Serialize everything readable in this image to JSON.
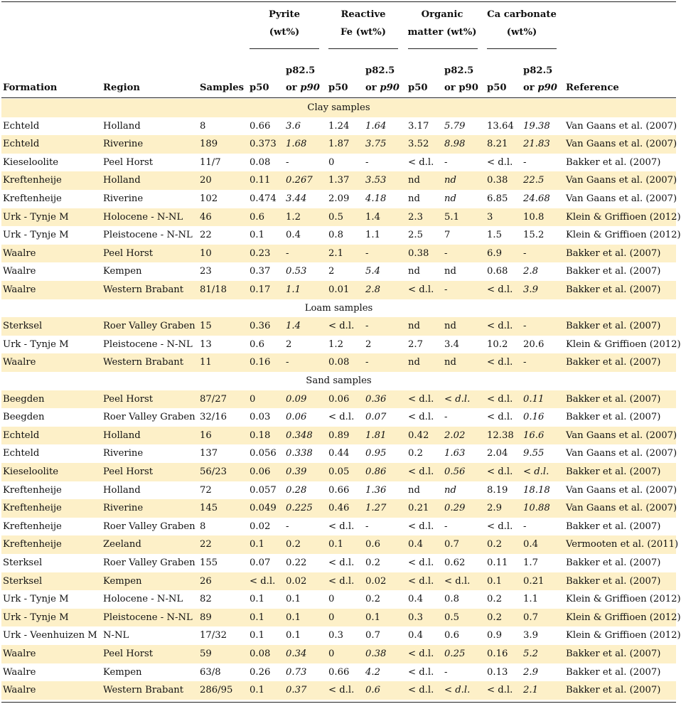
{
  "groups": [
    {
      "line1": "Pyrite",
      "line2": "(wt%)"
    },
    {
      "line1": "Reactive",
      "line2": "Fe (wt%)"
    },
    {
      "line1": "Organic",
      "line2": "matter (wt%)"
    },
    {
      "line1": "Ca carbonate",
      "line2": "(wt%)"
    }
  ],
  "headers": {
    "formation": "Formation",
    "region": "Region",
    "samples": "Samples",
    "pyrite_p50": "p50",
    "pyrite_p82_top": "p82.5",
    "pyrite_p82_bot_a": "or ",
    "pyrite_p82_bot_b": "p90",
    "fe_p50": "p50",
    "fe_p82_top": "p82.5",
    "fe_p82_bot_a": "or ",
    "fe_p82_bot_b": "p90",
    "om_p50": "p50",
    "om_p82_top": "p82.5",
    "om_p82_bot": "or p90",
    "ca_p50": "p50",
    "ca_p82_top": "p82.5",
    "ca_p82_bot_a": "or ",
    "ca_p82_bot_b": "p90",
    "reference": "Reference"
  },
  "sections": [
    {
      "title": "Clay samples",
      "rows": [
        {
          "f": "Echteld",
          "r": "Holland",
          "s": "8",
          "a": "0.66",
          "b": "3.6",
          "bi": true,
          "c": "1.24",
          "d": "1.64",
          "di": true,
          "e": "3.17",
          "g": "5.79",
          "gi": true,
          "h": "13.64",
          "k": "19.38",
          "ki": true,
          "ref": "Van Gaans et al. (2007)"
        },
        {
          "f": "Echteld",
          "r": "Riverine",
          "s": "189",
          "a": "0.373",
          "b": "1.68",
          "bi": true,
          "c": "1.87",
          "d": "3.75",
          "di": true,
          "e": "3.52",
          "g": "8.98",
          "gi": true,
          "h": "8.21",
          "k": "21.83",
          "ki": true,
          "ref": "Van Gaans et al. (2007)"
        },
        {
          "f": "Kieseloolite",
          "r": "Peel Horst",
          "s": "11/7",
          "a": "0.08",
          "b": "-",
          "c": "0",
          "d": "-",
          "e": "< d.l.",
          "g": "-",
          "h": "< d.l.",
          "k": "-",
          "ref": "Bakker et al. (2007)"
        },
        {
          "f": "Kreftenheije",
          "r": "Holland",
          "s": "20",
          "a": "0.11",
          "b": "0.267",
          "bi": true,
          "c": "1.37",
          "d": "3.53",
          "di": true,
          "e": "nd",
          "g": "nd",
          "gi": true,
          "h": "0.38",
          "k": "22.5",
          "ki": true,
          "ref": "Van Gaans et al. (2007)"
        },
        {
          "f": "Kreftenheije",
          "r": "Riverine",
          "s": "102",
          "a": "0.474",
          "b": "3.44",
          "bi": true,
          "c": "2.09",
          "d": "4.18",
          "di": true,
          "e": "nd",
          "g": "nd",
          "gi": true,
          "h": "6.85",
          "k": "24.68",
          "ki": true,
          "ref": "Van Gaans et al. (2007)"
        },
        {
          "f": "Urk - Tynje M",
          "r": "Holocene - N-NL",
          "s": "46",
          "a": "0.6",
          "b": "1.2",
          "c": "0.5",
          "d": "1.4",
          "e": "2.3",
          "g": "5.1",
          "h": "3",
          "k": "10.8",
          "ref": "Klein & Griffioen (2012)"
        },
        {
          "f": "Urk - Tynje M",
          "r": "Pleistocene - N-NL",
          "s": "22",
          "a": "0.1",
          "b": "0.4",
          "c": "0.8",
          "d": "1.1",
          "e": "2.5",
          "g": "7",
          "h": "1.5",
          "k": "15.2",
          "ref": "Klein & Griffioen (2012)"
        },
        {
          "f": "Waalre",
          "r": "Peel Horst",
          "s": "10",
          "a": "0.23",
          "b": "-",
          "c": "2.1",
          "d": "-",
          "e": "0.38",
          "g": "-",
          "h": "6.9",
          "k": "-",
          "ref": "Bakker et al. (2007)"
        },
        {
          "f": "Waalre",
          "r": "Kempen",
          "s": "23",
          "a": "0.37",
          "b": "0.53",
          "bi": true,
          "c": "2",
          "d": "5.4",
          "di": true,
          "e": "nd",
          "g": "nd",
          "h": "0.68",
          "k": "2.8",
          "ki": true,
          "ref": "Bakker et al. (2007)"
        },
        {
          "f": "Waalre",
          "r": "Western Brabant",
          "s": "81/18",
          "a": "0.17",
          "b": "1.1",
          "bi": true,
          "c": "0.01",
          "d": "2.8",
          "di": true,
          "e": "< d.l.",
          "g": "-",
          "h": "< d.l.",
          "k": "3.9",
          "ki": true,
          "ref": "Bakker et al. (2007)"
        }
      ]
    },
    {
      "title": "Loam samples",
      "rows": [
        {
          "f": "Sterksel",
          "r": "Roer Valley Graben",
          "s": "15",
          "a": "0.36",
          "b": "1.4",
          "bi": true,
          "c": "< d.l.",
          "d": "-",
          "e": "nd",
          "g": "nd",
          "h": "< d.l.",
          "k": "-",
          "ref": "Bakker et al. (2007)"
        },
        {
          "f": "Urk - Tynje M",
          "r": "Pleistocene - N-NL",
          "s": "13",
          "a": "0.6",
          "b": "2",
          "c": "1.2",
          "d": "2",
          "e": "2.7",
          "g": "3.4",
          "h": "10.2",
          "k": "20.6",
          "ref": "Klein & Griffioen (2012)"
        },
        {
          "f": "Waalre",
          "r": "Western Brabant",
          "s": "11",
          "a": "0.16",
          "b": "-",
          "c": "0.08",
          "d": "-",
          "e": "nd",
          "g": "nd",
          "h": "< d.l.",
          "k": "-",
          "ref": "Bakker et al. (2007)"
        }
      ]
    },
    {
      "title": "Sand samples",
      "rows": [
        {
          "f": "Beegden",
          "r": "Peel Horst",
          "s": "87/27",
          "a": "0",
          "b": "0.09",
          "bi": true,
          "c": "0.06",
          "d": "0.36",
          "di": true,
          "e": "< d.l.",
          "g": "< d.l.",
          "gi": true,
          "h": "< d.l.",
          "k": "0.11",
          "ki": true,
          "ref": "Bakker et al. (2007)"
        },
        {
          "f": "Beegden",
          "r": "Roer Valley Graben",
          "s": "32/16",
          "a": "0.03",
          "b": "0.06",
          "bi": true,
          "c": "< d.l.",
          "d": "0.07",
          "di": true,
          "e": "< d.l.",
          "g": "-",
          "h": "< d.l.",
          "k": "0.16",
          "ki": true,
          "ref": "Bakker et al. (2007)"
        },
        {
          "f": "Echteld",
          "r": "Holland",
          "s": "16",
          "a": "0.18",
          "b": "0.348",
          "bi": true,
          "c": "0.89",
          "d": "1.81",
          "di": true,
          "e": "0.42",
          "g": "2.02",
          "gi": true,
          "h": "12.38",
          "k": "16.6",
          "ki": true,
          "ref": "Van Gaans et al. (2007)"
        },
        {
          "f": "Echteld",
          "r": "Riverine",
          "s": "137",
          "a": "0.056",
          "b": "0.338",
          "bi": true,
          "c": "0.44",
          "d": "0.95",
          "di": true,
          "e": "0.2",
          "g": "1.63",
          "gi": true,
          "h": "2.04",
          "k": "9.55",
          "ki": true,
          "ref": "Van Gaans et al. (2007)"
        },
        {
          "f": "Kieseloolite",
          "r": "Peel Horst",
          "s": "56/23",
          "a": "0.06",
          "b": "0.39",
          "bi": true,
          "c": "0.05",
          "d": "0.86",
          "di": true,
          "e": "< d.l.",
          "g": "0.56",
          "gi": true,
          "h": "< d.l.",
          "k": "< d.l.",
          "ki": true,
          "ref": "Bakker et al. (2007)"
        },
        {
          "f": "Kreftenheije",
          "r": "Holland",
          "s": "72",
          "a": "0.057",
          "b": "0.28",
          "bi": true,
          "c": "0.66",
          "d": "1.36",
          "di": true,
          "e": "nd",
          "g": "nd",
          "gi": true,
          "h": "8.19",
          "k": "18.18",
          "ki": true,
          "ref": "Van Gaans et al. (2007)"
        },
        {
          "f": "Kreftenheije",
          "r": "Riverine",
          "s": "145",
          "a": "0.049",
          "b": "0.225",
          "bi": true,
          "c": "0.46",
          "d": "1.27",
          "di": true,
          "e": "0.21",
          "g": "0.29",
          "gi": true,
          "h": "2.9",
          "k": "10.88",
          "ki": true,
          "ref": "Van Gaans et al. (2007)"
        },
        {
          "f": "Kreftenheije",
          "r": "Roer Valley Graben",
          "s": "8",
          "a": "0.02",
          "b": "-",
          "c": "< d.l.",
          "d": "-",
          "e": "< d.l.",
          "g": "-",
          "h": "< d.l.",
          "k": "-",
          "ref": "Bakker et al. (2007)"
        },
        {
          "f": "Kreftenheije",
          "r": "Zeeland",
          "s": "22",
          "a": "0.1",
          "b": "0.2",
          "c": "0.1",
          "d": "0.6",
          "e": "0.4",
          "g": "0.7",
          "h": "0.2",
          "k": "0.4",
          "ref": "Vermooten et al. (2011)"
        },
        {
          "f": "Sterksel",
          "r": "Roer Valley Graben",
          "s": "155",
          "a": "0.07",
          "b": "0.22",
          "c": "< d.l.",
          "d": "0.2",
          "e": "< d.l.",
          "g": "0.62",
          "h": "0.11",
          "k": "1.7",
          "ref": "Bakker et al. (2007)"
        },
        {
          "f": "Sterksel",
          "r": "Kempen",
          "s": "26",
          "a": "< d.l.",
          "b": "0.02",
          "c": "< d.l.",
          "d": "0.02",
          "e": "< d.l.",
          "g": "< d.l.",
          "h": "0.1",
          "k": "0.21",
          "ref": "Bakker et al. (2007)"
        },
        {
          "f": "Urk - Tynje M",
          "r": "Holocene - N-NL",
          "s": "82",
          "a": "0.1",
          "b": "0.1",
          "c": "0",
          "d": "0.2",
          "e": "0.4",
          "g": "0.8",
          "h": "0.2",
          "k": "1.1",
          "ref": "Klein & Griffioen (2012)"
        },
        {
          "f": "Urk - Tynje M",
          "r": "Pleistocene - N-NL",
          "s": "89",
          "a": "0.1",
          "b": "0.1",
          "c": "0",
          "d": "0.1",
          "e": "0.3",
          "g": "0.5",
          "h": "0.2",
          "k": "0.7",
          "ref": "Klein & Griffioen (2012)"
        },
        {
          "f": "Urk - Veenhuizen M",
          "r": "N-NL",
          "s": "17/32",
          "a": "0.1",
          "b": "0.1",
          "c": "0.3",
          "d": "0.7",
          "e": "0.4",
          "g": "0.6",
          "h": "0.9",
          "k": "3.9",
          "ref": "Klein & Griffioen (2012)"
        },
        {
          "f": "Waalre",
          "r": "Peel Horst",
          "s": "59",
          "a": "0.08",
          "b": "0.34",
          "bi": true,
          "c": "0",
          "d": "0.38",
          "di": true,
          "e": "< d.l.",
          "g": "0.25",
          "gi": true,
          "h": "0.16",
          "k": "5.2",
          "ki": true,
          "ref": "Bakker et al. (2007)"
        },
        {
          "f": "Waalre",
          "r": "Kempen",
          "s": "63/8",
          "a": "0.26",
          "b": "0.73",
          "bi": true,
          "c": "0.66",
          "d": "4.2",
          "di": true,
          "e": "< d.l.",
          "g": "-",
          "h": "0.13",
          "k": "2.9",
          "ki": true,
          "ref": "Bakker et al. (2007)"
        },
        {
          "f": "Waalre",
          "r": "Western Brabant",
          "s": "286/95",
          "a": "0.1",
          "b": "0.37",
          "bi": true,
          "c": "< d.l.",
          "d": "0.6",
          "di": true,
          "e": "< d.l.",
          "g": "< d.l.",
          "gi": true,
          "h": "< d.l.",
          "k": "2.1",
          "ki": true,
          "ref": "Bakker et al. (2007)"
        }
      ]
    }
  ]
}
